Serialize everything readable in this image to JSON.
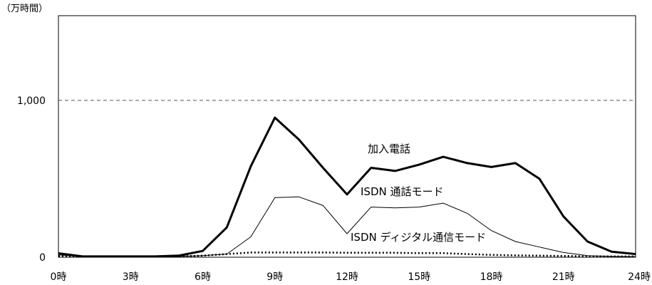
{
  "chart_data": {
    "type": "line",
    "y_unit_label": "（万時間）",
    "x": [
      0,
      1,
      2,
      3,
      4,
      5,
      6,
      7,
      8,
      9,
      10,
      11,
      12,
      13,
      14,
      15,
      16,
      17,
      18,
      19,
      20,
      21,
      22,
      23,
      24
    ],
    "xticks": [
      {
        "value": 0,
        "label": "0時"
      },
      {
        "value": 3,
        "label": "3時"
      },
      {
        "value": 6,
        "label": "6時"
      },
      {
        "value": 9,
        "label": "9時"
      },
      {
        "value": 12,
        "label": "12時"
      },
      {
        "value": 15,
        "label": "15時"
      },
      {
        "value": 18,
        "label": "18時"
      },
      {
        "value": 21,
        "label": "21時"
      },
      {
        "value": 24,
        "label": "24時"
      }
    ],
    "yticks": [
      {
        "value": 0,
        "label": "0"
      },
      {
        "value": 1000,
        "label": "1,000"
      }
    ],
    "ylim": [
      0,
      1540
    ],
    "xlim": [
      0,
      24
    ],
    "grid": "horizontal dashed at 1,000",
    "series": [
      {
        "name": "加入電話",
        "style": "thick",
        "values": [
          25,
          5,
          5,
          5,
          5,
          10,
          40,
          190,
          580,
          890,
          750,
          570,
          400,
          570,
          550,
          590,
          640,
          600,
          575,
          600,
          500,
          260,
          100,
          35,
          20
        ]
      },
      {
        "name": "ISDN 通話モード",
        "style": "thin",
        "values": [
          15,
          3,
          3,
          3,
          3,
          5,
          10,
          20,
          130,
          380,
          385,
          330,
          150,
          320,
          315,
          320,
          345,
          280,
          170,
          100,
          65,
          30,
          10,
          5,
          3
        ]
      },
      {
        "name": "ISDN ディジタル通信モード",
        "style": "dotted",
        "values": [
          8,
          5,
          5,
          5,
          5,
          5,
          10,
          20,
          30,
          30,
          30,
          30,
          28,
          28,
          28,
          26,
          26,
          20,
          15,
          12,
          10,
          8,
          6,
          5,
          5
        ]
      }
    ]
  }
}
